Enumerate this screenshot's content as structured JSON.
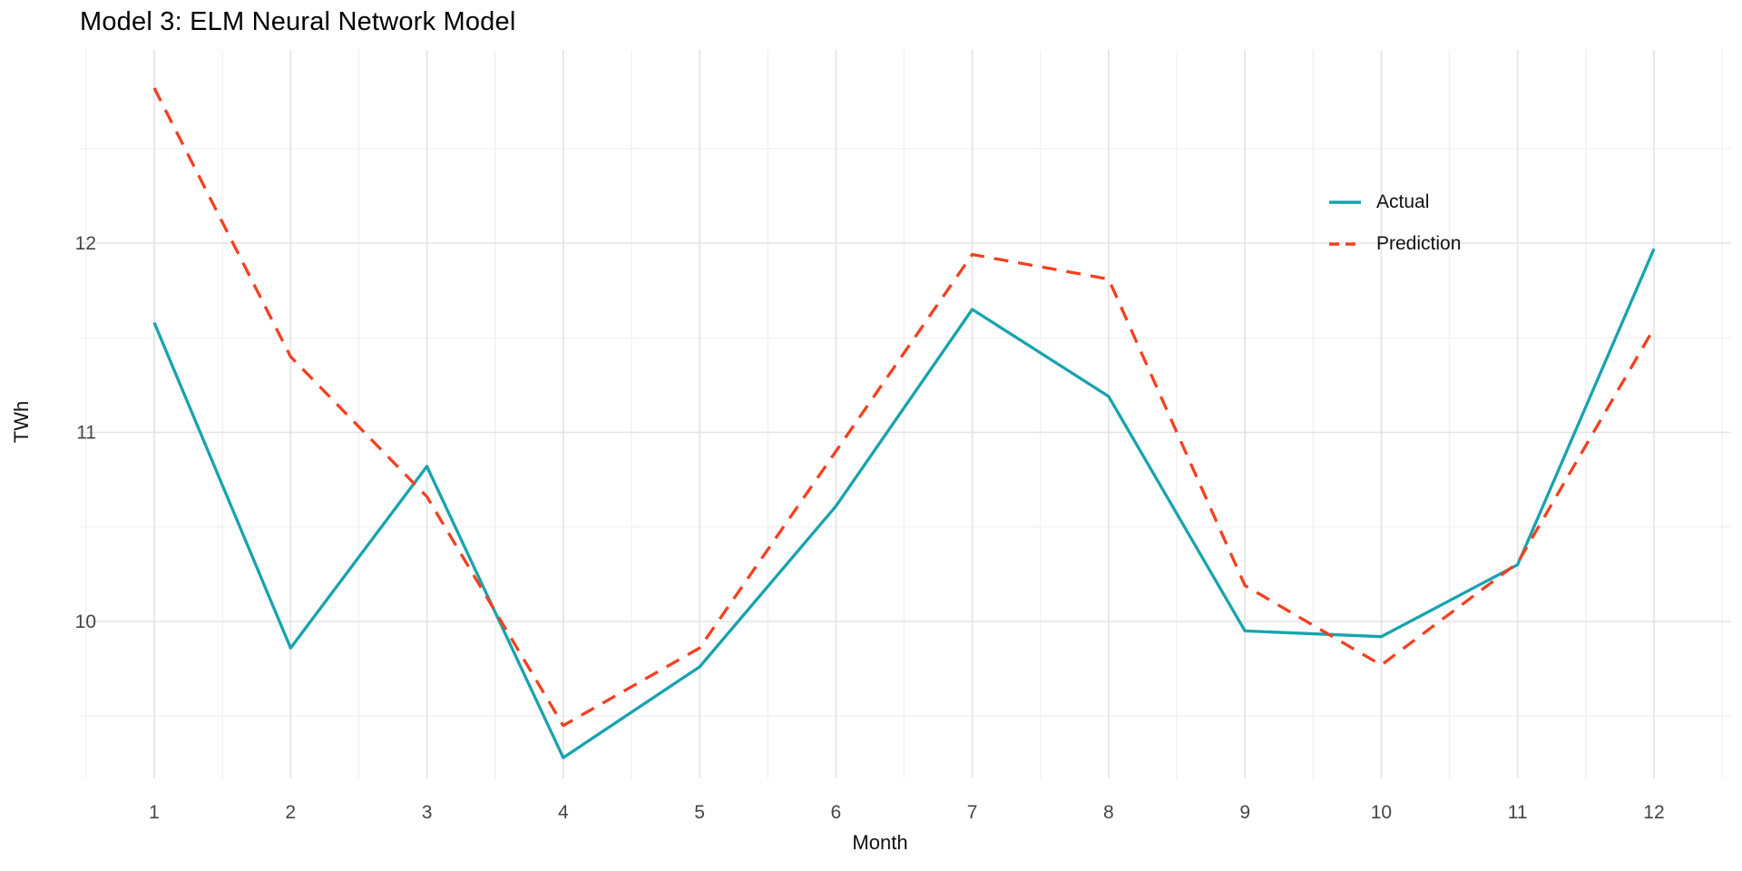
{
  "page": {
    "title": "Model 3: ELM Neural Network Model"
  },
  "chart_data": {
    "type": "line",
    "title": "Model 3: ELM Neural Network Model",
    "xlabel": "Month",
    "ylabel": "TWh",
    "x": [
      1,
      2,
      3,
      4,
      5,
      6,
      7,
      8,
      9,
      10,
      11,
      12
    ],
    "xticks": [
      "1",
      "2",
      "3",
      "4",
      "5",
      "6",
      "7",
      "8",
      "9",
      "10",
      "11",
      "12"
    ],
    "yticks": [
      "10",
      "11",
      "12"
    ],
    "ytick_values": [
      10,
      11,
      12
    ],
    "y_minor_values": [
      9.5,
      10.5,
      11.5,
      12.5
    ],
    "ylim": [
      9.17,
      13.03
    ],
    "grid": "on",
    "legend_position": "inside-top-right",
    "legend": [
      "Actual",
      "Prediction"
    ],
    "colors": {
      "actual": "#17A3AE",
      "prediction": "#F4401F",
      "grid_major": "#E3E3E3",
      "grid_minor": "#F0F0F0",
      "tick_text": "#454545",
      "title_text": "#000000"
    },
    "series": [
      {
        "name": "Actual",
        "style": "solid",
        "values": [
          11.58,
          9.86,
          10.82,
          9.28,
          9.76,
          10.61,
          11.65,
          11.19,
          9.95,
          9.92,
          10.3,
          11.97
        ]
      },
      {
        "name": "Prediction",
        "style": "dashed",
        "values": [
          12.82,
          11.4,
          10.66,
          9.45,
          9.86,
          10.9,
          11.94,
          11.81,
          10.19,
          9.77,
          10.31,
          11.55
        ]
      }
    ]
  }
}
